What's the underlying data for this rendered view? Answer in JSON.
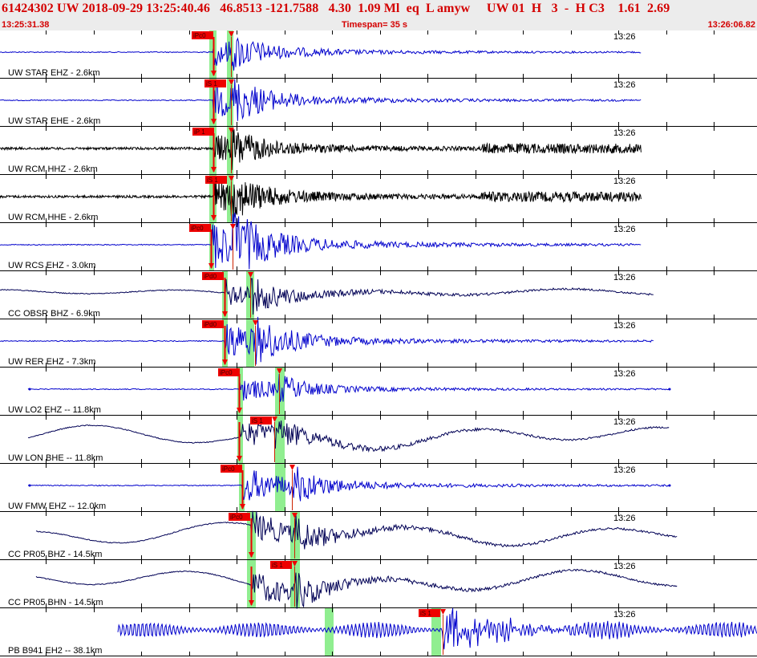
{
  "header": {
    "line1": "61424302 UW 2018-09-29 13:25:40.46   46.8513 -121.7588   4.30  1.09 Ml  eq  L amyw     UW 01  H   3  -  H C3    1.61  2.69",
    "start_time": "13:25:31.38",
    "timespan_label": "Timespan=",
    "timespan_value": "35 s",
    "end_time": "13:26:06.82"
  },
  "colors": {
    "header_text": "#d40000",
    "blue_trace": "#0000cc",
    "black_trace": "#000000",
    "navy_trace": "#000055",
    "pick_flag": "#ee0000",
    "window_highlight": "#90ee90"
  },
  "traces": [
    {
      "name": "UW STAR EHZ -",
      "dist": "2.6km",
      "time": "13:26",
      "color": "blue",
      "p_flag": "iPc0",
      "s_flag": ""
    },
    {
      "name": "UW STAR EHE -",
      "dist": "2.6km",
      "time": "13:26",
      "color": "blue",
      "p_flag": "",
      "s_flag": "iS 1"
    },
    {
      "name": "UW RCM HHZ -",
      "dist": "2.6km",
      "time": "13:26",
      "color": "black",
      "p_flag": "iP 1",
      "s_flag": ""
    },
    {
      "name": "UW RCM HHE -",
      "dist": "2.6km",
      "time": "13:26",
      "color": "black",
      "p_flag": "",
      "s_flag": "iS 1"
    },
    {
      "name": "UW RCS EHZ -",
      "dist": "3.0km",
      "time": "13:26",
      "color": "blue",
      "p_flag": "iPc0",
      "s_flag": ""
    },
    {
      "name": "CC OBSR BHZ -",
      "dist": "6.9km",
      "time": "13:26",
      "color": "navy",
      "p_flag": "iPd0",
      "s_flag": ""
    },
    {
      "name": "UW RER EHZ -",
      "dist": "7.3km",
      "time": "13:26",
      "color": "blue",
      "p_flag": "iPd0",
      "s_flag": ""
    },
    {
      "name": "UW LO2 EHZ --",
      "dist": "11.8km",
      "time": "13:26",
      "color": "blue",
      "p_flag": "iPc0",
      "s_flag": ""
    },
    {
      "name": "UW LON BHE --",
      "dist": "11.8km",
      "time": "13:26",
      "color": "navy",
      "p_flag": "",
      "s_flag": "iS 1"
    },
    {
      "name": "UW FMW EHZ --",
      "dist": "12.0km",
      "time": "13:26",
      "color": "blue",
      "p_flag": "iPc0",
      "s_flag": ""
    },
    {
      "name": "CC PR05 BHZ -",
      "dist": "14.5km",
      "time": "13:26",
      "color": "navy",
      "p_flag": "iPc0",
      "s_flag": ""
    },
    {
      "name": "CC PR05 BHN -",
      "dist": "14.5km",
      "time": "13:26",
      "color": "navy",
      "p_flag": "",
      "s_flag": "iS 1"
    },
    {
      "name": "PB B941 EH2 --",
      "dist": "38.1km",
      "time": "13:26",
      "color": "blue",
      "p_flag": "",
      "s_flag": "iS 1"
    }
  ]
}
